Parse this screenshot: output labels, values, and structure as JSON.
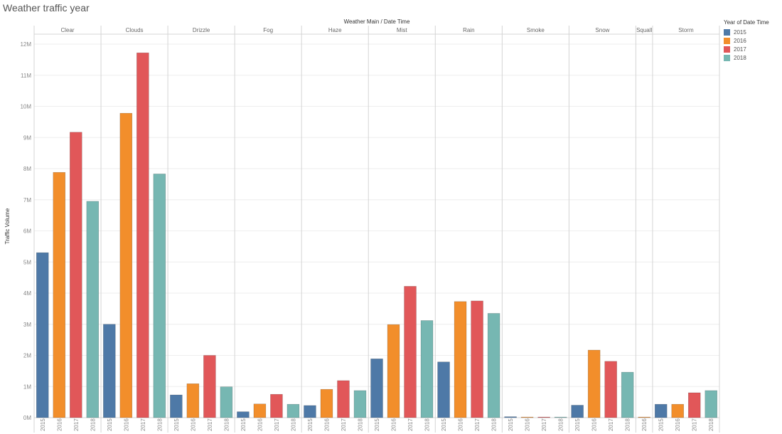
{
  "header": {
    "title": "Weather traffic year"
  },
  "legend": {
    "title": "Year of Date Time",
    "items": [
      {
        "label": "2015",
        "color": "#4e79a7"
      },
      {
        "label": "2016",
        "color": "#f28e2b"
      },
      {
        "label": "2017",
        "color": "#e15759"
      },
      {
        "label": "2018",
        "color": "#76b7b2"
      }
    ]
  },
  "chart_data": {
    "type": "bar",
    "title": "Weather traffic year",
    "column_header": "Weather Main  /  Date Time",
    "ylabel": "Traffic Volume",
    "ylim": [
      0,
      12000000
    ],
    "yticks": [
      {
        "value": 0,
        "label": "0M"
      },
      {
        "value": 1000000,
        "label": "1M"
      },
      {
        "value": 2000000,
        "label": "2M"
      },
      {
        "value": 3000000,
        "label": "3M"
      },
      {
        "value": 4000000,
        "label": "4M"
      },
      {
        "value": 5000000,
        "label": "5M"
      },
      {
        "value": 6000000,
        "label": "6M"
      },
      {
        "value": 7000000,
        "label": "7M"
      },
      {
        "value": 8000000,
        "label": "8M"
      },
      {
        "value": 9000000,
        "label": "9M"
      },
      {
        "value": 10000000,
        "label": "10M"
      },
      {
        "value": 11000000,
        "label": "11M"
      },
      {
        "value": 12000000,
        "label": "12M"
      }
    ],
    "grid": true,
    "legend_position": "right",
    "groups": [
      {
        "name": "Clear",
        "bars": [
          {
            "year": "2015",
            "value": 5300000
          },
          {
            "year": "2016",
            "value": 7880000
          },
          {
            "year": "2017",
            "value": 9170000
          },
          {
            "year": "2018",
            "value": 6950000
          }
        ]
      },
      {
        "name": "Clouds",
        "bars": [
          {
            "year": "2015",
            "value": 3000000
          },
          {
            "year": "2016",
            "value": 9780000
          },
          {
            "year": "2017",
            "value": 11720000
          },
          {
            "year": "2018",
            "value": 7830000
          }
        ]
      },
      {
        "name": "Drizzle",
        "bars": [
          {
            "year": "2015",
            "value": 730000
          },
          {
            "year": "2016",
            "value": 1090000
          },
          {
            "year": "2017",
            "value": 2000000
          },
          {
            "year": "2018",
            "value": 990000
          }
        ]
      },
      {
        "name": "Fog",
        "bars": [
          {
            "year": "2015",
            "value": 190000
          },
          {
            "year": "2016",
            "value": 440000
          },
          {
            "year": "2017",
            "value": 750000
          },
          {
            "year": "2018",
            "value": 430000
          }
        ]
      },
      {
        "name": "Haze",
        "bars": [
          {
            "year": "2015",
            "value": 390000
          },
          {
            "year": "2016",
            "value": 910000
          },
          {
            "year": "2017",
            "value": 1190000
          },
          {
            "year": "2018",
            "value": 870000
          }
        ]
      },
      {
        "name": "Mist",
        "bars": [
          {
            "year": "2015",
            "value": 1890000
          },
          {
            "year": "2016",
            "value": 2990000
          },
          {
            "year": "2017",
            "value": 4220000
          },
          {
            "year": "2018",
            "value": 3120000
          }
        ]
      },
      {
        "name": "Rain",
        "bars": [
          {
            "year": "2015",
            "value": 1790000
          },
          {
            "year": "2016",
            "value": 3730000
          },
          {
            "year": "2017",
            "value": 3750000
          },
          {
            "year": "2018",
            "value": 3350000
          }
        ]
      },
      {
        "name": "Smoke",
        "bars": [
          {
            "year": "2015",
            "value": 30000
          },
          {
            "year": "2016",
            "value": 10000
          },
          {
            "year": "2017",
            "value": 5000
          },
          {
            "year": "2018",
            "value": 10000
          }
        ]
      },
      {
        "name": "Snow",
        "bars": [
          {
            "year": "2015",
            "value": 400000
          },
          {
            "year": "2016",
            "value": 2170000
          },
          {
            "year": "2017",
            "value": 1810000
          },
          {
            "year": "2018",
            "value": 1460000
          }
        ]
      },
      {
        "name": "Squall",
        "bars": [
          {
            "year": "2016",
            "value": 1000
          }
        ]
      },
      {
        "name": "Storm",
        "bars": [
          {
            "year": "2015",
            "value": 430000
          },
          {
            "year": "2016",
            "value": 430000
          },
          {
            "year": "2017",
            "value": 800000
          },
          {
            "year": "2018",
            "value": 870000
          }
        ]
      }
    ]
  }
}
